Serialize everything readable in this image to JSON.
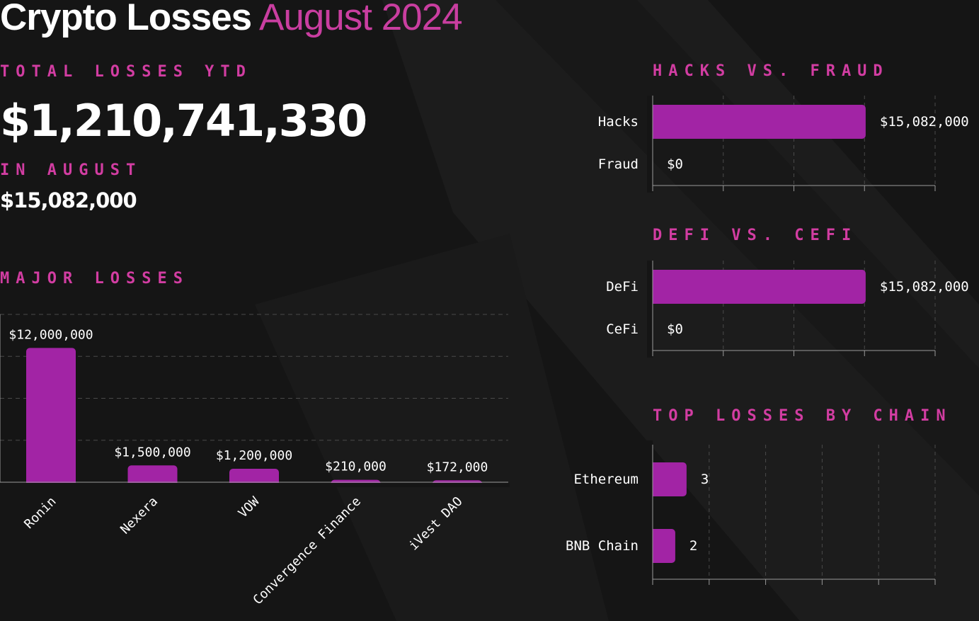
{
  "title": {
    "main": "Crypto Losses",
    "accent": "August 2024"
  },
  "total": {
    "label": "TOTAL LOSSES YTD",
    "value": "$1,210,741,330"
  },
  "month": {
    "label": "IN AUGUST",
    "value": "$15,082,000"
  },
  "colors": {
    "accent": "#d23da2",
    "bar": "#a224a5",
    "background": "#151515"
  },
  "chart_data": [
    {
      "type": "bar",
      "title": "MAJOR LOSSES",
      "orientation": "vertical",
      "categories": [
        "Ronin",
        "Nexera",
        "VOW",
        "Convergence Finance",
        "iVest DAO"
      ],
      "values": [
        12000000,
        1500000,
        1200000,
        210000,
        172000
      ],
      "data_labels": [
        "$12,000,000",
        "$1,500,000",
        "$1,200,000",
        "$210,000",
        "$172,000"
      ],
      "ylim": [
        0,
        15000000
      ],
      "grid": true
    },
    {
      "type": "bar",
      "title": "HACKS VS. FRAUD",
      "orientation": "horizontal",
      "categories": [
        "Hacks",
        "Fraud"
      ],
      "values": [
        15082000,
        0
      ],
      "data_labels": [
        "$15,082,000",
        "$0"
      ],
      "xlim": [
        0,
        20000000
      ],
      "grid": true
    },
    {
      "type": "bar",
      "title": "DEFI VS. CEFI",
      "orientation": "horizontal",
      "categories": [
        "DeFi",
        "CeFi"
      ],
      "values": [
        15082000,
        0
      ],
      "data_labels": [
        "$15,082,000",
        "$0"
      ],
      "xlim": [
        0,
        20000000
      ],
      "grid": true
    },
    {
      "type": "bar",
      "title": "TOP LOSSES BY CHAIN",
      "orientation": "horizontal",
      "categories": [
        "Ethereum",
        "BNB Chain"
      ],
      "values": [
        3,
        2
      ],
      "data_labels": [
        "3",
        "2"
      ],
      "xlim": [
        0,
        25
      ],
      "grid": true
    }
  ]
}
